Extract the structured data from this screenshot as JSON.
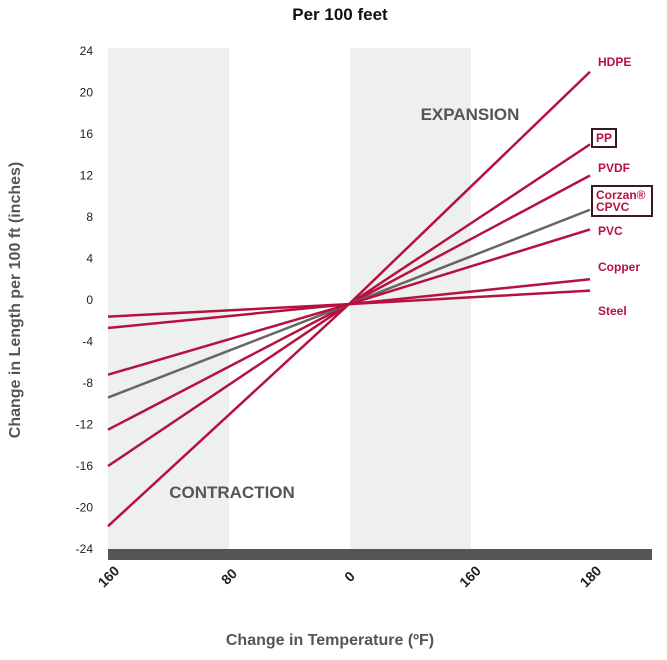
{
  "chart_data": {
    "type": "line",
    "title": "Per 100 feet",
    "y_label": "Change in Length per 100 ft (inches)",
    "x_label": "Change in Temperature (ºF)",
    "annotations": [
      "EXPANSION",
      "CONTRACTION"
    ],
    "categories": [
      "160",
      "80",
      "0",
      "160",
      "180"
    ],
    "ylim": [
      -24,
      24
    ],
    "yticks": [
      24,
      20,
      16,
      12,
      8,
      4,
      0,
      -4,
      -8,
      -12,
      -16,
      -20,
      -24
    ],
    "series": [
      {
        "name": "HDPE",
        "color": "#b5123f",
        "values": [
          -21.8,
          -11.1,
          -0.4,
          10.8,
          22
        ]
      },
      {
        "name": "PP",
        "color": "#b5123f",
        "boxed": true,
        "values": [
          -16,
          -8.2,
          -0.4,
          7.3,
          15
        ]
      },
      {
        "name": "PVDF",
        "color": "#b5123f",
        "values": [
          -12.5,
          -6.45,
          -0.4,
          5.8,
          12
        ]
      },
      {
        "name": "Corzan® CPVC",
        "color": "#666666",
        "boxed": true,
        "values": [
          -9.4,
          -4.9,
          -0.4,
          4.15,
          8.7
        ]
      },
      {
        "name": "PVC",
        "color": "#b5123f",
        "values": [
          -7.2,
          -3.8,
          -0.4,
          3.2,
          6.8
        ]
      },
      {
        "name": "Copper",
        "color": "#b5123f",
        "values": [
          -2.7,
          -1.55,
          -0.4,
          0.8,
          2
        ]
      },
      {
        "name": "Steel",
        "color": "#b5123f",
        "values": [
          -1.6,
          -1,
          -0.4,
          0.25,
          0.9
        ]
      }
    ]
  }
}
